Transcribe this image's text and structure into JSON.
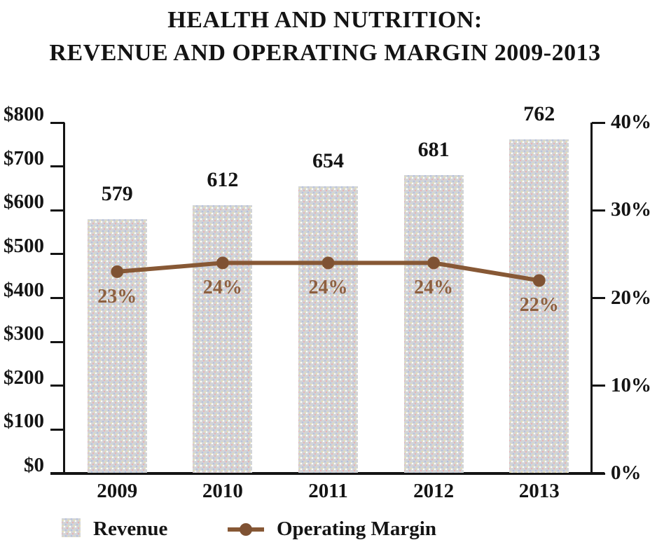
{
  "chart_data": {
    "type": "combo-bar-line",
    "title_lines": [
      "HEALTH AND NUTRITION:",
      "REVENUE AND OPERATING MARGIN 2009-2013"
    ],
    "categories": [
      "2009",
      "2010",
      "2011",
      "2012",
      "2013"
    ],
    "series": [
      {
        "name": "Revenue",
        "type": "bar",
        "axis": "left",
        "values": [
          579,
          612,
          654,
          681,
          762
        ],
        "value_labels": [
          "579",
          "612",
          "654",
          "681",
          "762"
        ],
        "color": "#d2d4d7"
      },
      {
        "name": "Operating Margin",
        "type": "line",
        "axis": "right",
        "values": [
          23,
          24,
          24,
          24,
          22
        ],
        "value_labels": [
          "23%",
          "24%",
          "24%",
          "24%",
          "22%"
        ],
        "color": "#875835"
      }
    ],
    "left_axis": {
      "min": 0,
      "max": 800,
      "tick_step": 100,
      "tick_labels": [
        "$0",
        "$100",
        "$200",
        "$300",
        "$400",
        "$500",
        "$600",
        "$700",
        "$800"
      ]
    },
    "right_axis": {
      "min": 0,
      "max": 40,
      "tick_step": 10,
      "tick_labels": [
        "0%",
        "10%",
        "20%",
        "30%",
        "40%"
      ]
    },
    "legend": {
      "position": "bottom-left",
      "items": [
        "Revenue",
        "Operating Margin"
      ]
    },
    "grid": "off",
    "colors": {
      "bar_fill": "#d2d4d7",
      "line": "#875835",
      "marker": "#7f5233",
      "pct_label": "#8d6040",
      "axis": "#141414",
      "text": "#141414"
    }
  }
}
